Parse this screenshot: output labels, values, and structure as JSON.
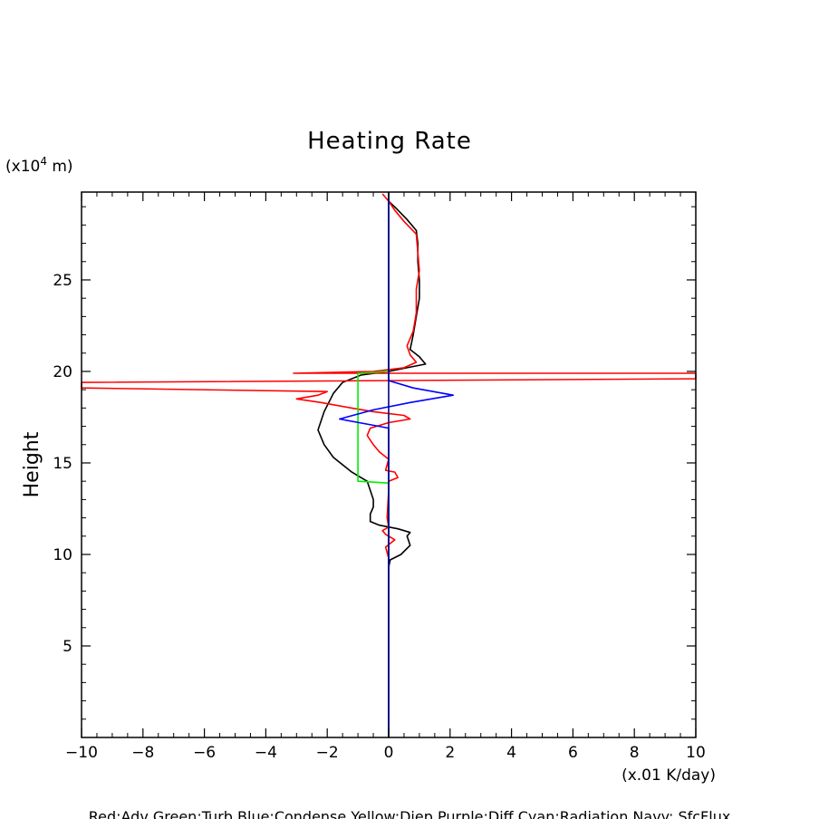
{
  "chart_data": {
    "type": "line",
    "title": "Heating Rate",
    "xlabel": "(x.01 K/day)",
    "ylabel": "Height",
    "y_unit_label": "(x10",
    "y_unit_exp": "4",
    "y_unit_suffix": " m)",
    "xlim": [
      -10,
      10
    ],
    "ylim": [
      0,
      29.8
    ],
    "x_ticks": [
      "−10",
      "−8",
      "−6",
      "−4",
      "−2",
      "0",
      "2",
      "4",
      "6",
      "8",
      "10"
    ],
    "x_tick_values": [
      -10,
      -8,
      -6,
      -4,
      -2,
      0,
      2,
      4,
      6,
      8,
      10
    ],
    "y_ticks": [
      "5",
      "10",
      "15",
      "20",
      "25"
    ],
    "y_tick_values": [
      5,
      10,
      15,
      20,
      25
    ],
    "legend_text": "Red:Adv  Green:Turb  Blue:Condense  Yellow:Diep  Purple:Diff  Cyan:Radiation  Navy: SfcFlux",
    "series": [
      {
        "color": "#000000",
        "points": [
          [
            0,
            0
          ],
          [
            0,
            9.3
          ],
          [
            0.05,
            9.7
          ],
          [
            0.4,
            10.0
          ],
          [
            0.7,
            10.5
          ],
          [
            0.6,
            11.0
          ],
          [
            0.7,
            11.2
          ],
          [
            0.3,
            11.4
          ],
          [
            -0.3,
            11.6
          ],
          [
            -0.6,
            11.8
          ],
          [
            -0.6,
            12.2
          ],
          [
            -0.5,
            12.6
          ],
          [
            -0.5,
            13.0
          ],
          [
            -0.6,
            13.5
          ],
          [
            -0.7,
            14.0
          ],
          [
            -1.2,
            14.5
          ],
          [
            -1.8,
            15.3
          ],
          [
            -2.1,
            16.0
          ],
          [
            -2.3,
            16.8
          ],
          [
            -2.1,
            17.8
          ],
          [
            -1.8,
            18.8
          ],
          [
            -1.5,
            19.4
          ],
          [
            -0.9,
            19.8
          ],
          [
            0,
            20.0
          ],
          [
            0.6,
            20.2
          ],
          [
            1.2,
            20.4
          ],
          [
            1.0,
            20.8
          ],
          [
            0.7,
            21.2
          ],
          [
            0.8,
            22.0
          ],
          [
            0.9,
            23.0
          ],
          [
            1.0,
            24.0
          ],
          [
            1.0,
            25.0
          ],
          [
            0.95,
            26.0
          ],
          [
            0.95,
            27.0
          ],
          [
            0.9,
            27.7
          ],
          [
            0.6,
            28.3
          ],
          [
            0.25,
            28.9
          ],
          [
            0,
            29.3
          ],
          [
            0,
            29.8
          ]
        ]
      },
      {
        "color": "#ff0000",
        "points": [
          [
            0,
            0
          ],
          [
            0,
            9.8
          ],
          [
            -0.1,
            10.4
          ],
          [
            0.05,
            10.6
          ],
          [
            0.2,
            10.8
          ],
          [
            -0.1,
            11.1
          ],
          [
            -0.2,
            11.3
          ],
          [
            0,
            11.5
          ],
          [
            -0.05,
            12.0
          ],
          [
            0,
            13.5
          ],
          [
            0,
            14.0
          ],
          [
            0.3,
            14.2
          ],
          [
            0.2,
            14.5
          ],
          [
            -0.1,
            14.6
          ],
          [
            0,
            15.2
          ],
          [
            -0.3,
            15.6
          ],
          [
            -0.5,
            16.0
          ],
          [
            -0.7,
            16.5
          ],
          [
            -0.6,
            16.9
          ],
          [
            0,
            17.2
          ],
          [
            0.7,
            17.4
          ],
          [
            0.5,
            17.6
          ],
          [
            -0.5,
            17.8
          ],
          [
            -1.2,
            18.0
          ],
          [
            -2.2,
            18.3
          ],
          [
            -3.0,
            18.5
          ],
          [
            -2.3,
            18.7
          ],
          [
            -2.0,
            18.9
          ],
          [
            -10,
            19.1
          ],
          [
            -10,
            19.4
          ],
          [
            10,
            19.6
          ],
          [
            10,
            19.9
          ],
          [
            -3.1,
            19.9
          ],
          [
            -0.5,
            20.0
          ],
          [
            0.5,
            20.2
          ],
          [
            0.9,
            20.5
          ],
          [
            0.7,
            20.9
          ],
          [
            0.6,
            21.4
          ],
          [
            0.8,
            22.2
          ],
          [
            0.9,
            23.2
          ],
          [
            0.9,
            24.5
          ],
          [
            1.0,
            25.5
          ],
          [
            0.95,
            26.5
          ],
          [
            0.9,
            27.5
          ],
          [
            0.5,
            28.2
          ],
          [
            0.2,
            28.8
          ],
          [
            0,
            29.3
          ],
          [
            -0.2,
            29.7
          ]
        ]
      },
      {
        "color": "#00ee00",
        "points": [
          [
            0,
            0
          ],
          [
            0,
            13.9
          ],
          [
            -1.0,
            14.0
          ],
          [
            -1.0,
            19.9
          ],
          [
            0,
            20.0
          ],
          [
            0,
            29.8
          ]
        ]
      },
      {
        "color": "#0000ff",
        "points": [
          [
            0,
            0
          ],
          [
            0,
            16.9
          ],
          [
            -0.3,
            17.0
          ],
          [
            -1.6,
            17.4
          ],
          [
            -0.5,
            17.9
          ],
          [
            0.7,
            18.3
          ],
          [
            2.1,
            18.7
          ],
          [
            0.8,
            19.1
          ],
          [
            0,
            19.5
          ],
          [
            0,
            29.8
          ]
        ]
      },
      {
        "color": "#000080",
        "points": [
          [
            0,
            0
          ],
          [
            0,
            29.8
          ]
        ]
      }
    ]
  }
}
